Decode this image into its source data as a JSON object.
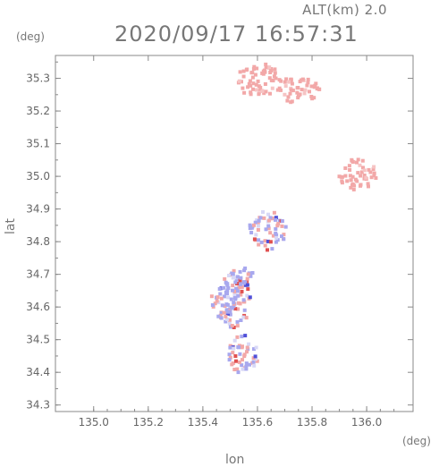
{
  "header": {
    "altitude": "ALT(km)  2.0",
    "timestamp": "2020/09/17  16:57:31"
  },
  "axes": {
    "lat_unit": "(deg)",
    "lon_unit": "(deg)",
    "lat_title": "lat",
    "lon_title": "lon"
  },
  "chart_data": {
    "type": "heatmap",
    "xlabel": "lon",
    "ylabel": "lat",
    "xlim": [
      134.86,
      136.17
    ],
    "ylim": [
      34.28,
      35.37
    ],
    "x_ticks": [
      "135.0",
      "135.2",
      "135.4",
      "135.6",
      "135.8",
      "136.0"
    ],
    "y_ticks": [
      "34.3",
      "34.4",
      "34.5",
      "34.6",
      "34.7",
      "34.8",
      "34.9",
      "35.0",
      "35.1",
      "35.2",
      "35.3"
    ],
    "colors": {
      "positive": "#f2a8a8",
      "negative": "#a8a8ee",
      "strong_positive": "#e05050",
      "strong_negative": "#5050d8"
    },
    "clusters": [
      {
        "lon": 135.6,
        "lat": 35.3,
        "dlon": 0.09,
        "dlat": 0.05,
        "sign": "positive"
      },
      {
        "lon": 135.74,
        "lat": 35.27,
        "dlon": 0.09,
        "dlat": 0.04,
        "sign": "positive"
      },
      {
        "lon": 135.96,
        "lat": 35.01,
        "dlon": 0.07,
        "dlat": 0.05,
        "sign": "positive"
      },
      {
        "lon": 135.51,
        "lat": 34.63,
        "dlon": 0.06,
        "dlat": 0.09,
        "sign": "mixed"
      },
      {
        "lon": 135.54,
        "lat": 34.46,
        "dlon": 0.06,
        "dlat": 0.06,
        "sign": "mixed"
      },
      {
        "lon": 135.63,
        "lat": 34.84,
        "dlon": 0.07,
        "dlat": 0.06,
        "sign": "mixed"
      },
      {
        "lon": 135.54,
        "lat": 34.7,
        "dlon": 0.04,
        "dlat": 0.03,
        "sign": "negative"
      },
      {
        "lon": 135.47,
        "lat": 34.62,
        "dlon": 0.05,
        "dlat": 0.05,
        "sign": "negative"
      }
    ]
  }
}
